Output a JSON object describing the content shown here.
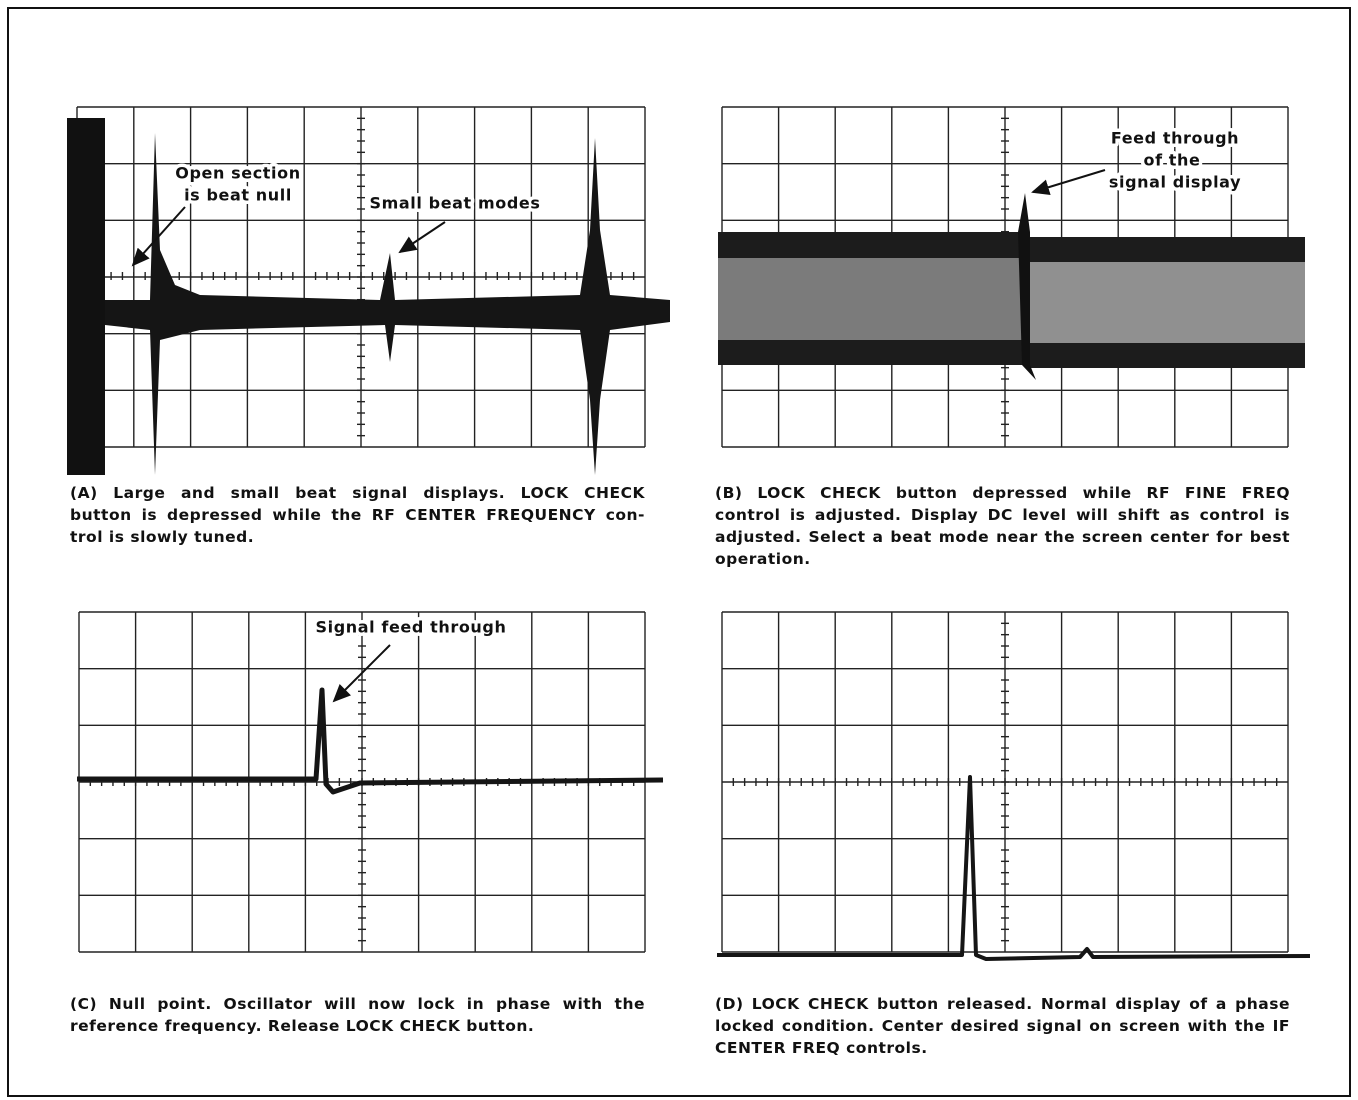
{
  "panels": [
    {
      "annotations": [
        [
          "Open section",
          "is beat null"
        ],
        [
          "Small beat modes"
        ]
      ],
      "caption": [
        "(A) Large and small beat signal displays. LOCK CHECK",
        "button is depressed while the RF CENTER FREQUENCY con-",
        "trol is slowly tuned."
      ]
    },
    {
      "annotations": [
        [
          "Feed through",
          "of the",
          "signal display"
        ]
      ],
      "caption": [
        "(B) LOCK CHECK button depressed while RF FINE FREQ",
        "control is adjusted. Display DC level will shift as control is",
        "adjusted. Select a beat mode near the screen center for best",
        "operation."
      ]
    },
    {
      "annotations": [
        [
          "Signal feed through"
        ]
      ],
      "caption": [
        "(C) Null point. Oscillator will now lock in phase with the",
        "reference frequency. Release LOCK CHECK button."
      ]
    },
    {
      "annotations": [],
      "caption": [
        "(D) LOCK CHECK button released. Normal display of a phase",
        "locked condition. Center desired signal on screen with the IF",
        "CENTER FREQ controls."
      ]
    }
  ]
}
